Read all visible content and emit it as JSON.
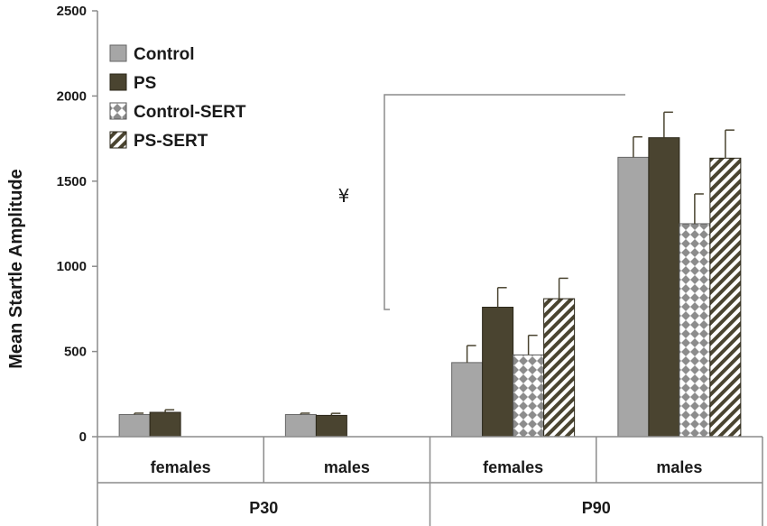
{
  "chart_data": {
    "type": "bar",
    "title": "",
    "xlabel": "",
    "ylabel": "Mean Startle Amplitude",
    "ylim": [
      0,
      2500
    ],
    "yticks": [
      0,
      500,
      1000,
      1500,
      2000,
      2500
    ],
    "groups": [
      {
        "label": "P30",
        "categories": [
          "females",
          "males"
        ]
      },
      {
        "label": "P90",
        "categories": [
          "females",
          "males"
        ]
      }
    ],
    "categories": [
      "females",
      "males",
      "females",
      "males"
    ],
    "series": [
      {
        "name": "Control",
        "values": [
          130,
          130,
          435,
          1640
        ],
        "errors": [
          8,
          8,
          100,
          120
        ]
      },
      {
        "name": "PS",
        "values": [
          143,
          125,
          760,
          1755
        ],
        "errors": [
          15,
          12,
          115,
          150
        ]
      },
      {
        "name": "Control-SERT",
        "values": [
          null,
          null,
          480,
          1250
        ],
        "errors": [
          null,
          null,
          115,
          175
        ]
      },
      {
        "name": "PS-SERT",
        "values": [
          null,
          null,
          810,
          1635
        ],
        "errors": [
          null,
          null,
          120,
          165
        ]
      }
    ],
    "legend_position": "top-left",
    "annotations": [
      {
        "text": "¥",
        "description": "bracket spanning P30 to P90"
      }
    ],
    "colors": {
      "Control": "#a6a6a6",
      "PS": "#4a4430",
      "Control-SERT": "#8c8c8c",
      "PS-SERT": "#4a4430"
    }
  }
}
